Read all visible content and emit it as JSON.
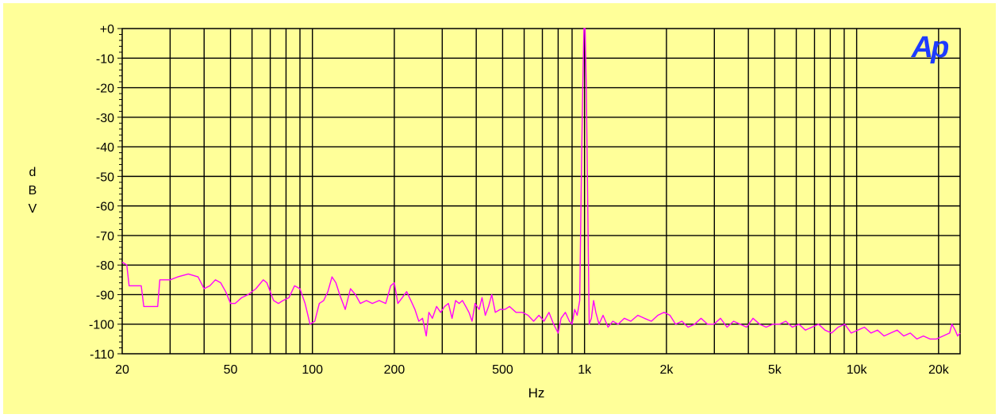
{
  "chart_data": {
    "type": "line",
    "title": "",
    "xlabel": "Hz",
    "ylabel": "dBV",
    "ylabel_letters": [
      "d",
      "B",
      "V"
    ],
    "x_scale": "log",
    "xlim": [
      20,
      24000
    ],
    "ylim": [
      -110,
      0
    ],
    "grid": true,
    "logo_text": "Ap",
    "x_ticks": [
      {
        "value": 20,
        "label": "20"
      },
      {
        "value": 50,
        "label": "50"
      },
      {
        "value": 100,
        "label": "100"
      },
      {
        "value": 200,
        "label": "200"
      },
      {
        "value": 500,
        "label": "500"
      },
      {
        "value": 1000,
        "label": "1k"
      },
      {
        "value": 2000,
        "label": "2k"
      },
      {
        "value": 5000,
        "label": "5k"
      },
      {
        "value": 10000,
        "label": "10k"
      },
      {
        "value": 20000,
        "label": "20k"
      }
    ],
    "y_ticks": [
      {
        "value": 0,
        "label": "+0"
      },
      {
        "value": -10,
        "label": "-10"
      },
      {
        "value": -20,
        "label": "-20"
      },
      {
        "value": -30,
        "label": "-30"
      },
      {
        "value": -40,
        "label": "-40"
      },
      {
        "value": -50,
        "label": "-50"
      },
      {
        "value": -60,
        "label": "-60"
      },
      {
        "value": -70,
        "label": "-70"
      },
      {
        "value": -80,
        "label": "-80"
      },
      {
        "value": -90,
        "label": "-90"
      },
      {
        "value": -100,
        "label": "-100"
      },
      {
        "value": -110,
        "label": "-110"
      }
    ],
    "series": [
      {
        "color": "#ff00ff",
        "points": [
          [
            20,
            -79
          ],
          [
            20.8,
            -80
          ],
          [
            21.2,
            -87
          ],
          [
            22,
            -87
          ],
          [
            23.5,
            -87
          ],
          [
            24,
            -94
          ],
          [
            27,
            -94
          ],
          [
            27.5,
            -85
          ],
          [
            30,
            -85
          ],
          [
            32,
            -84
          ],
          [
            35,
            -83
          ],
          [
            38,
            -84
          ],
          [
            40,
            -88
          ],
          [
            42,
            -87
          ],
          [
            44,
            -85
          ],
          [
            46,
            -86
          ],
          [
            48,
            -89
          ],
          [
            50,
            -93
          ],
          [
            52,
            -93
          ],
          [
            55,
            -91
          ],
          [
            58,
            -90
          ],
          [
            62,
            -88
          ],
          [
            66,
            -85
          ],
          [
            68,
            -86
          ],
          [
            72,
            -92
          ],
          [
            75,
            -93
          ],
          [
            78,
            -92
          ],
          [
            82,
            -91
          ],
          [
            86,
            -87
          ],
          [
            90,
            -88
          ],
          [
            94,
            -93
          ],
          [
            98,
            -100
          ],
          [
            102,
            -99
          ],
          [
            106,
            -93
          ],
          [
            110,
            -92
          ],
          [
            114,
            -89
          ],
          [
            118,
            -84
          ],
          [
            122,
            -86
          ],
          [
            126,
            -90
          ],
          [
            132,
            -95
          ],
          [
            138,
            -88
          ],
          [
            144,
            -90
          ],
          [
            150,
            -93
          ],
          [
            158,
            -92
          ],
          [
            166,
            -93
          ],
          [
            176,
            -92
          ],
          [
            186,
            -93
          ],
          [
            194,
            -87
          ],
          [
            200,
            -86
          ],
          [
            206,
            -93
          ],
          [
            214,
            -91
          ],
          [
            222,
            -89
          ],
          [
            230,
            -92
          ],
          [
            238,
            -95
          ],
          [
            246,
            -99
          ],
          [
            254,
            -98
          ],
          [
            262,
            -104
          ],
          [
            268,
            -96
          ],
          [
            276,
            -98
          ],
          [
            286,
            -94
          ],
          [
            296,
            -96
          ],
          [
            306,
            -94
          ],
          [
            316,
            -93
          ],
          [
            326,
            -98
          ],
          [
            336,
            -92
          ],
          [
            346,
            -93
          ],
          [
            356,
            -92
          ],
          [
            366,
            -94
          ],
          [
            376,
            -96
          ],
          [
            386,
            -99
          ],
          [
            396,
            -93
          ],
          [
            410,
            -95
          ],
          [
            420,
            -91
          ],
          [
            432,
            -97
          ],
          [
            444,
            -94
          ],
          [
            456,
            -90
          ],
          [
            470,
            -96
          ],
          [
            490,
            -95
          ],
          [
            510,
            -95
          ],
          [
            530,
            -94
          ],
          [
            560,
            -96
          ],
          [
            590,
            -96
          ],
          [
            620,
            -97
          ],
          [
            650,
            -99
          ],
          [
            680,
            -97
          ],
          [
            710,
            -99
          ],
          [
            740,
            -96
          ],
          [
            770,
            -100
          ],
          [
            800,
            -103
          ],
          [
            820,
            -98
          ],
          [
            850,
            -96
          ],
          [
            880,
            -99
          ],
          [
            900,
            -100
          ],
          [
            920,
            -95
          ],
          [
            940,
            -97
          ],
          [
            960,
            -92
          ],
          [
            975,
            -45
          ],
          [
            985,
            -20
          ],
          [
            995,
            0
          ],
          [
            1005,
            0
          ],
          [
            1015,
            -20
          ],
          [
            1025,
            -50
          ],
          [
            1040,
            -100
          ],
          [
            1060,
            -98
          ],
          [
            1080,
            -92
          ],
          [
            1100,
            -96
          ],
          [
            1130,
            -100
          ],
          [
            1170,
            -97
          ],
          [
            1220,
            -101
          ],
          [
            1270,
            -99
          ],
          [
            1330,
            -100
          ],
          [
            1400,
            -98
          ],
          [
            1480,
            -99
          ],
          [
            1570,
            -97
          ],
          [
            1660,
            -98
          ],
          [
            1760,
            -99
          ],
          [
            1860,
            -97
          ],
          [
            1960,
            -96
          ],
          [
            2060,
            -97
          ],
          [
            2160,
            -100
          ],
          [
            2280,
            -99
          ],
          [
            2400,
            -101
          ],
          [
            2540,
            -100
          ],
          [
            2680,
            -98
          ],
          [
            2830,
            -100
          ],
          [
            2990,
            -100
          ],
          [
            3160,
            -98
          ],
          [
            3340,
            -101
          ],
          [
            3530,
            -99
          ],
          [
            3730,
            -100
          ],
          [
            3940,
            -101
          ],
          [
            4160,
            -98
          ],
          [
            4400,
            -100
          ],
          [
            4650,
            -101
          ],
          [
            4920,
            -100
          ],
          [
            5200,
            -100
          ],
          [
            5490,
            -99
          ],
          [
            5800,
            -101
          ],
          [
            6130,
            -100
          ],
          [
            6480,
            -102
          ],
          [
            6850,
            -101
          ],
          [
            7240,
            -100
          ],
          [
            7650,
            -102
          ],
          [
            8090,
            -103
          ],
          [
            8550,
            -101
          ],
          [
            9040,
            -100
          ],
          [
            9550,
            -103
          ],
          [
            10100,
            -102
          ],
          [
            10680,
            -101
          ],
          [
            11290,
            -103
          ],
          [
            11930,
            -102
          ],
          [
            12610,
            -104
          ],
          [
            13330,
            -103
          ],
          [
            14090,
            -102
          ],
          [
            14890,
            -104
          ],
          [
            15740,
            -103
          ],
          [
            16640,
            -105
          ],
          [
            17590,
            -104
          ],
          [
            18590,
            -105
          ],
          [
            19650,
            -105
          ],
          [
            20770,
            -104
          ],
          [
            21950,
            -103
          ],
          [
            22400,
            -100
          ],
          [
            23000,
            -102
          ],
          [
            23500,
            -104
          ],
          [
            24000,
            -103
          ]
        ]
      }
    ]
  }
}
